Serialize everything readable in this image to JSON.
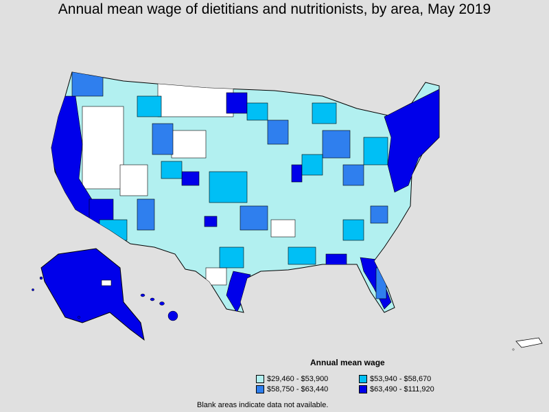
{
  "title": "Annual mean wage of dietitians and nutritionists, by area, May 2019",
  "legend": {
    "title": "Annual mean wage",
    "items": [
      {
        "label": "$29,460 - $53,900",
        "color": "#b2f0f0"
      },
      {
        "label": "$53,940 - $58,670",
        "color": "#00bff5"
      },
      {
        "label": "$58,750 - $63,440",
        "color": "#2f7fee"
      },
      {
        "label": "$63,490 - $111,920",
        "color": "#0000ea"
      }
    ]
  },
  "footnote": "Blank areas indicate data not available.",
  "colors": {
    "background": "#e0e0e0",
    "blank": "#ffffff",
    "border": "#000000"
  }
}
